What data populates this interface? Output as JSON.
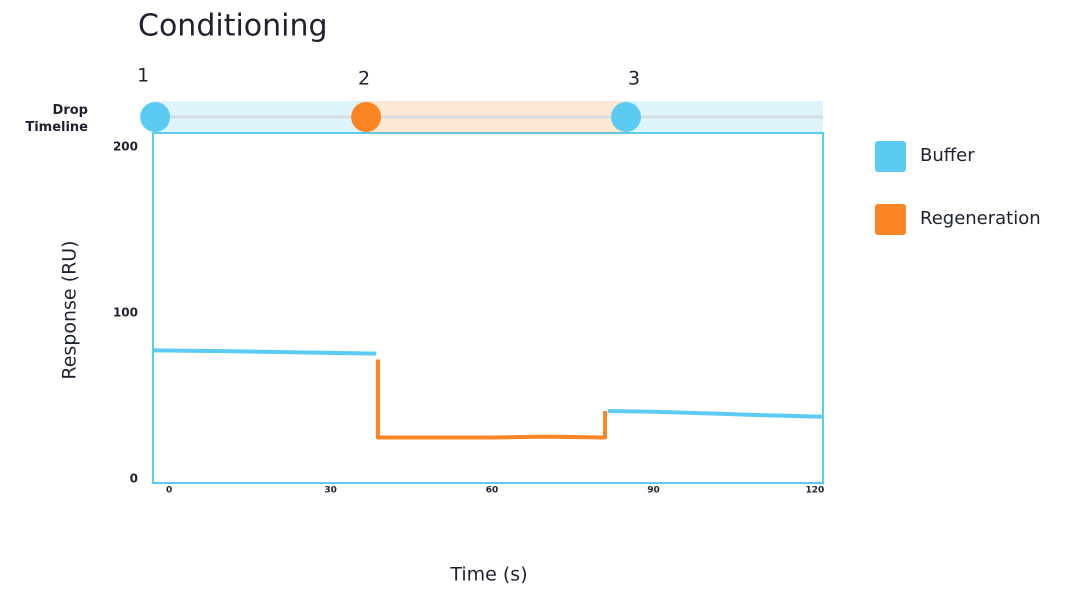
{
  "chart_data": {
    "type": "line",
    "title": "Conditioning",
    "timeline_label": "Drop Timeline",
    "x_label": "Time (s)",
    "y_label": "Response (RU)",
    "xlim": [
      -3,
      121.5
    ],
    "ylim": [
      -2.4,
      208.4
    ],
    "xticks": [
      0,
      30,
      60,
      90,
      120
    ],
    "yticks": [
      0,
      100,
      200
    ],
    "grid": false,
    "legend": "right",
    "series": [
      {
        "name": "Buffer",
        "color": "#5ccbf3",
        "x": [
          -3,
          10,
          20,
          30,
          38.5,
          60,
          81.5,
          90,
          100,
          110,
          121.5
        ],
        "values": [
          77.5,
          77,
          76.5,
          76,
          75.5,
          null,
          41,
          40.5,
          39.5,
          38.5,
          37.5
        ]
      },
      {
        "name": "Regeneration",
        "color": "#fb8524",
        "x": [
          38.8,
          38.8,
          50,
          60,
          70,
          81,
          81
        ],
        "values": [
          72,
          25,
          25,
          25,
          25.5,
          25,
          41
        ]
      }
    ],
    "drops": [
      {
        "label": "1",
        "time": -2.6,
        "series": 0
      },
      {
        "label": "2",
        "time": 36.6,
        "series": 1
      },
      {
        "label": "3",
        "time": 84.9,
        "series": 0
      }
    ]
  }
}
